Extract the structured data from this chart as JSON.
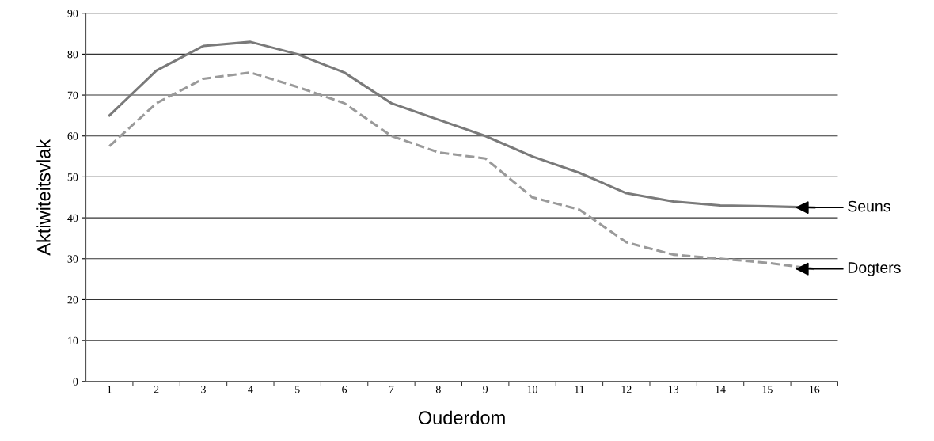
{
  "chart_data": {
    "type": "line",
    "xlabel": "Ouderdom",
    "ylabel": "Aktiwiteitsvlak",
    "categories": [
      "1",
      "2",
      "3",
      "4",
      "5",
      "6",
      "7",
      "8",
      "9",
      "10",
      "11",
      "12",
      "13",
      "14",
      "15",
      "16"
    ],
    "series": [
      {
        "name": "Seuns",
        "color": "#7a7a7a",
        "line_style": "solid",
        "values": [
          65,
          76,
          82,
          83,
          80,
          75.5,
          68,
          64,
          60,
          55,
          51,
          46,
          44,
          43,
          42.8,
          42.5
        ]
      },
      {
        "name": "Dogters",
        "color": "#9a9a9a",
        "line_style": "dashed",
        "values": [
          57.5,
          68,
          74,
          75.5,
          72,
          68,
          60,
          56,
          54.5,
          45,
          42,
          34,
          31,
          30,
          29,
          27.5
        ]
      }
    ],
    "ylim": [
      0,
      90
    ],
    "yticks": [
      0,
      10,
      20,
      30,
      40,
      50,
      60,
      70,
      80,
      90
    ],
    "grid": "y",
    "marker": "none",
    "legend": false
  }
}
